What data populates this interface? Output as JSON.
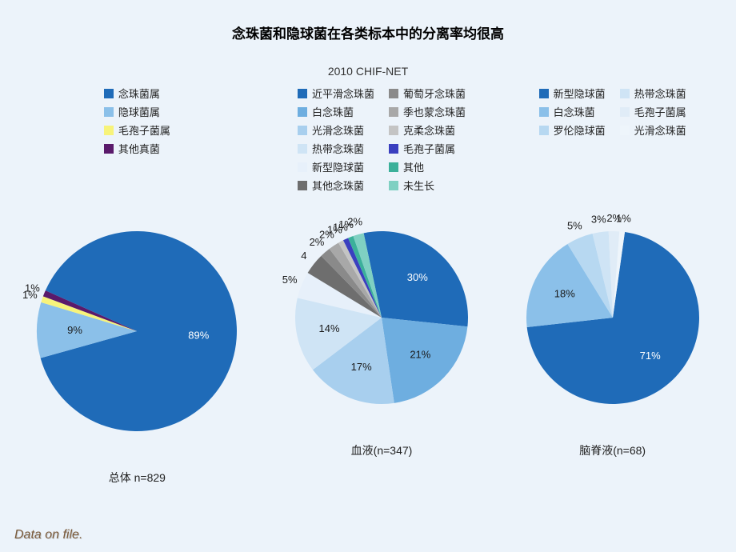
{
  "background_color": "#ecf3fa",
  "title": {
    "text": "念珠菌和隐球菌在各类标本中的分离率均很高",
    "fontsize": 17,
    "fontweight": "bold",
    "color": "#000000"
  },
  "subtitle": {
    "text": "2010 CHIF-NET",
    "fontsize": 14,
    "color": "#333333"
  },
  "footer": {
    "text": "Data on file.",
    "color": "#7a5a3a",
    "fontsize": 16
  },
  "pies": [
    {
      "id": "overall",
      "caption": "总体 n=829",
      "radius": 125,
      "label_fontsize": 13,
      "start_angle": -66,
      "legend": {
        "cols": [
          [
            "念珠菌属",
            "隐球菌属",
            "毛孢子菌属",
            "其他真菌"
          ]
        ],
        "colors": {
          "念珠菌属": "#1f6bb8",
          "隐球菌属": "#8bc0e9",
          "毛孢子菌属": "#f7f37a",
          "其他真菌": "#5a1a6b"
        }
      },
      "slices": [
        {
          "label": "念珠菌属",
          "value": 89,
          "color": "#1f6bb8",
          "text": "89%",
          "inside": true,
          "white": true
        },
        {
          "label": "隐球菌属",
          "value": 9,
          "color": "#8bc0e9",
          "text": "9%",
          "inside": true,
          "white": false
        },
        {
          "label": "毛孢子菌属",
          "value": 1,
          "color": "#f7f37a",
          "text": "1%",
          "inside": false,
          "white": false
        },
        {
          "label": "其他真菌",
          "value": 1,
          "color": "#5a1a6b",
          "text": "1%",
          "inside": false,
          "white": false
        }
      ]
    },
    {
      "id": "blood",
      "caption": "血液(n=347)",
      "radius": 108,
      "label_fontsize": 13,
      "start_angle": -12,
      "legend": {
        "cols": [
          [
            "近平滑念珠菌",
            "白念珠菌",
            "光滑念珠菌",
            "热带念珠菌",
            "新型隐球菌",
            "其他念珠菌"
          ],
          [
            "葡萄牙念珠菌",
            "季也蒙念珠菌",
            "克柔念珠菌",
            "毛孢子菌属",
            "其他",
            "未生长"
          ]
        ],
        "colors": {
          "近平滑念珠菌": "#1f6bb8",
          "白念珠菌": "#6eaee0",
          "光滑念珠菌": "#a8cfee",
          "热带念珠菌": "#cfe4f5",
          "新型隐球菌": "#e7f0fa",
          "其他念珠菌": "#6e6e6e",
          "葡萄牙念珠菌": "#8a8a8a",
          "季也蒙念珠菌": "#a8a8a8",
          "克柔念珠菌": "#c4c4c4",
          "毛孢子菌属": "#3a3fbf",
          "其他": "#3bb09a",
          "未生长": "#7fd0c2"
        }
      },
      "slices": [
        {
          "label": "近平滑念珠菌",
          "value": 30,
          "color": "#1f6bb8",
          "text": "30%",
          "inside": true,
          "white": true
        },
        {
          "label": "白念珠菌",
          "value": 21,
          "color": "#6eaee0",
          "text": "21%",
          "inside": true,
          "white": false
        },
        {
          "label": "光滑念珠菌",
          "value": 17,
          "color": "#a8cfee",
          "text": "17%",
          "inside": true,
          "white": false
        },
        {
          "label": "热带念珠菌",
          "value": 14,
          "color": "#cfe4f5",
          "text": "14%",
          "inside": true,
          "white": false
        },
        {
          "label": "新型隐球菌",
          "value": 5,
          "color": "#e7f0fa",
          "text": "5%",
          "inside": false,
          "white": false
        },
        {
          "label": "其他念珠菌",
          "value": 4,
          "color": "#6e6e6e",
          "text": "4",
          "inside": false,
          "white": false
        },
        {
          "label": "葡萄牙念珠菌",
          "value": 2,
          "color": "#8a8a8a",
          "text": "2%",
          "inside": false,
          "white": false
        },
        {
          "label": "季也蒙念珠菌",
          "value": 2,
          "color": "#a8a8a8",
          "text": "2%",
          "inside": false,
          "white": false
        },
        {
          "label": "克柔念珠菌",
          "value": 1,
          "color": "#c4c4c4",
          "text": "1%",
          "inside": false,
          "white": false
        },
        {
          "label": "毛孢子菌属",
          "value": 1,
          "color": "#3a3fbf",
          "text": "1%",
          "inside": false,
          "white": false
        },
        {
          "label": "其他",
          "value": 1,
          "color": "#3bb09a",
          "text": "1%",
          "inside": false,
          "white": false
        },
        {
          "label": "未生长",
          "value": 2,
          "color": "#7fd0c2",
          "text": "2%",
          "inside": false,
          "white": false
        }
      ]
    },
    {
      "id": "csf",
      "caption": "脑脊液(n=68)",
      "radius": 108,
      "label_fontsize": 13,
      "start_angle": 8,
      "legend": {
        "cols": [
          [
            "新型隐球菌",
            "白念珠菌",
            "罗伦隐球菌"
          ],
          [
            "热带念珠菌",
            "毛孢子菌属",
            "光滑念珠菌"
          ]
        ],
        "colors": {
          "新型隐球菌": "#1f6bb8",
          "白念珠菌": "#8bc0e9",
          "罗伦隐球菌": "#b7d8f1",
          "热带念珠菌": "#cfe4f5",
          "毛孢子菌属": "#e0ecf7",
          "光滑念珠菌": "#eef5fb"
        }
      },
      "slices": [
        {
          "label": "新型隐球菌",
          "value": 71,
          "color": "#1f6bb8",
          "text": "71%",
          "inside": true,
          "white": true
        },
        {
          "label": "白念珠菌",
          "value": 18,
          "color": "#8bc0e9",
          "text": "18%",
          "inside": true,
          "white": false
        },
        {
          "label": "罗伦隐球菌",
          "value": 5,
          "color": "#b7d8f1",
          "text": "5%",
          "inside": false,
          "white": false
        },
        {
          "label": "热带念珠菌",
          "value": 3,
          "color": "#cfe4f5",
          "text": "3%",
          "inside": false,
          "white": false
        },
        {
          "label": "毛孢子菌属",
          "value": 2,
          "color": "#e0ecf7",
          "text": "2%",
          "inside": false,
          "white": false
        },
        {
          "label": "光滑念珠菌",
          "value": 1,
          "color": "#eef5fb",
          "text": "1%",
          "inside": false,
          "white": false
        }
      ]
    }
  ]
}
